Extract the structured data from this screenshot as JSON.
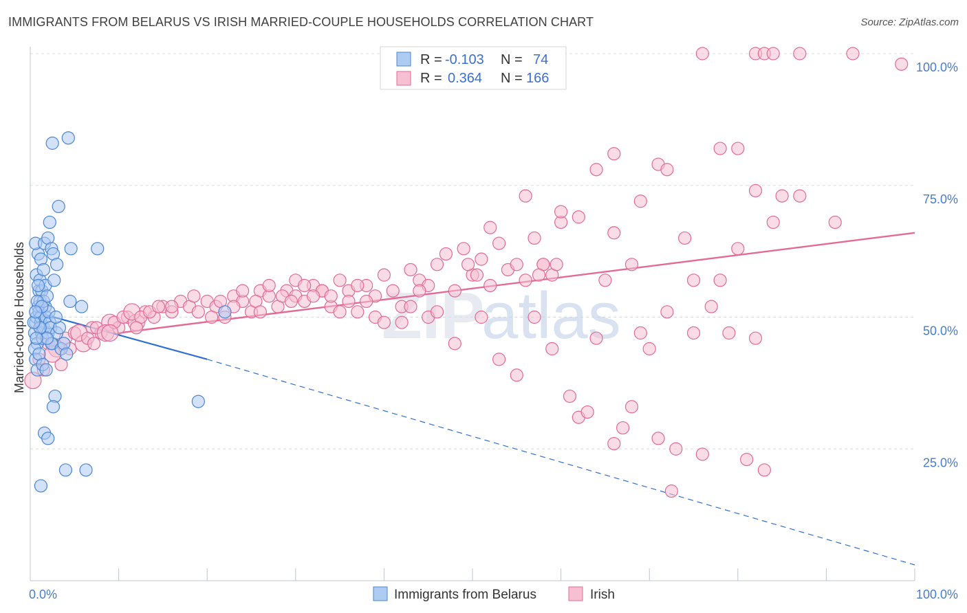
{
  "title": "IMMIGRANTS FROM BELARUS VS IRISH MARRIED-COUPLE HOUSEHOLDS CORRELATION CHART",
  "source": "Source: ZipAtlas.com",
  "watermark": {
    "zip": "ZIP",
    "atlas": "atlas"
  },
  "colors": {
    "blue": "#4a86d6",
    "blue_fill": "#aecbf2",
    "pink": "#e36a95",
    "pink_fill": "#f6bfd2",
    "grid": "#d8dde5",
    "axis_text": "#4a7cc9"
  },
  "legend": {
    "rows": [
      {
        "r_label": "R =",
        "r_value": "-0.103",
        "n_label": "N =",
        "n_value": "74"
      },
      {
        "r_label": "R =",
        "r_value": "0.364",
        "n_label": "N =",
        "n_value": "166"
      }
    ]
  },
  "bottom_legend": [
    "Immigrants from Belarus",
    "Irish"
  ],
  "chart_data": {
    "type": "scatter",
    "ylabel": "Married-couple Households",
    "xlim": [
      0,
      100
    ],
    "ylim": [
      0,
      100
    ],
    "x_tick_labels": [
      "0.0%",
      "100.0%"
    ],
    "y_tick_labels": [
      "25.0%",
      "50.0%",
      "75.0%",
      "100.0%"
    ],
    "y_ticks": [
      25,
      50,
      75,
      100
    ],
    "series": [
      {
        "name": "Immigrants from Belarus",
        "color": "#4a86d6",
        "trend": {
          "x0": 0.5,
          "y0": 51.0,
          "x1": 20.0,
          "y1": 42.0,
          "dash_x1": 100,
          "dash_y1": 3.0
        },
        "points": [
          [
            0.5,
            47
          ],
          [
            0.6,
            49
          ],
          [
            0.7,
            50
          ],
          [
            0.8,
            45
          ],
          [
            0.9,
            52
          ],
          [
            1.0,
            55
          ],
          [
            1.1,
            53
          ],
          [
            1.2,
            49
          ],
          [
            1.3,
            47
          ],
          [
            1.4,
            46
          ],
          [
            0.5,
            44
          ],
          [
            0.6,
            42
          ],
          [
            0.8,
            40
          ],
          [
            1.0,
            51
          ],
          [
            1.2,
            50
          ],
          [
            1.5,
            48
          ],
          [
            1.7,
            52
          ],
          [
            1.8,
            50
          ],
          [
            2.0,
            47
          ],
          [
            2.2,
            49
          ],
          [
            0.7,
            58
          ],
          [
            0.9,
            62
          ],
          [
            1.1,
            57
          ],
          [
            1.3,
            55
          ],
          [
            1.5,
            53
          ],
          [
            1.7,
            56
          ],
          [
            1.9,
            54
          ],
          [
            2.1,
            51
          ],
          [
            2.3,
            48
          ],
          [
            2.5,
            45
          ],
          [
            0.6,
            64
          ],
          [
            1.2,
            61
          ],
          [
            1.6,
            64
          ],
          [
            2.0,
            65
          ],
          [
            2.2,
            68
          ],
          [
            2.4,
            63
          ],
          [
            2.6,
            62
          ],
          [
            3.0,
            60
          ],
          [
            4.5,
            53
          ],
          [
            5.8,
            52
          ],
          [
            1.0,
            43
          ],
          [
            1.4,
            41
          ],
          [
            1.8,
            40
          ],
          [
            2.4,
            45
          ],
          [
            3.0,
            47
          ],
          [
            3.5,
            44
          ],
          [
            2.8,
            35
          ],
          [
            2.6,
            33
          ],
          [
            1.6,
            28
          ],
          [
            2.0,
            27
          ],
          [
            1.2,
            18
          ],
          [
            4.0,
            21
          ],
          [
            6.3,
            21
          ],
          [
            3.2,
            71
          ],
          [
            2.5,
            83
          ],
          [
            4.3,
            84
          ],
          [
            7.6,
            63
          ],
          [
            4.6,
            63
          ],
          [
            3.8,
            45
          ],
          [
            4.1,
            43
          ],
          [
            19.0,
            34
          ],
          [
            22.0,
            51
          ],
          [
            0.9,
            56
          ],
          [
            1.5,
            59
          ],
          [
            0.8,
            53
          ],
          [
            1.3,
            52
          ],
          [
            2.7,
            57
          ],
          [
            3.3,
            48
          ],
          [
            1.1,
            48
          ],
          [
            1.9,
            46
          ],
          [
            0.4,
            49
          ],
          [
            0.6,
            51
          ],
          [
            0.7,
            46
          ],
          [
            2.9,
            50
          ]
        ]
      },
      {
        "name": "Irish",
        "color": "#e36a95",
        "trend": {
          "x0": 10.0,
          "y0": 47.0,
          "x1": 100.0,
          "y1": 66.0
        },
        "points": [
          [
            0.3,
            38
          ],
          [
            1.0,
            42
          ],
          [
            2.0,
            45
          ],
          [
            3.0,
            44
          ],
          [
            4.0,
            46
          ],
          [
            5.0,
            47
          ],
          [
            6.0,
            45
          ],
          [
            7.0,
            48
          ],
          [
            8.0,
            47
          ],
          [
            9.0,
            49
          ],
          [
            10.0,
            48
          ],
          [
            11.0,
            50
          ],
          [
            12.0,
            49
          ],
          [
            13.0,
            51
          ],
          [
            14.0,
            50
          ],
          [
            15.0,
            52
          ],
          [
            16.0,
            51
          ],
          [
            17.0,
            53
          ],
          [
            18.0,
            52
          ],
          [
            19.0,
            51
          ],
          [
            20.0,
            53
          ],
          [
            21.0,
            52
          ],
          [
            22.0,
            50
          ],
          [
            23.0,
            54
          ],
          [
            24.0,
            53
          ],
          [
            25.0,
            51
          ],
          [
            26.0,
            55
          ],
          [
            27.0,
            54
          ],
          [
            28.0,
            52
          ],
          [
            29.0,
            55
          ],
          [
            30.0,
            54
          ],
          [
            31.0,
            53
          ],
          [
            32.0,
            56
          ],
          [
            33.0,
            55
          ],
          [
            34.0,
            52
          ],
          [
            35.0,
            57
          ],
          [
            36.0,
            55
          ],
          [
            37.0,
            51
          ],
          [
            38.0,
            56
          ],
          [
            39.0,
            54
          ],
          [
            40.0,
            58
          ],
          [
            41.0,
            55
          ],
          [
            42.0,
            52
          ],
          [
            43.0,
            59
          ],
          [
            44.0,
            57
          ],
          [
            45.0,
            50
          ],
          [
            46.0,
            60
          ],
          [
            47.0,
            62
          ],
          [
            48.0,
            55
          ],
          [
            49.0,
            63
          ],
          [
            50.0,
            58
          ],
          [
            51.0,
            61
          ],
          [
            52.0,
            56
          ],
          [
            53.0,
            64
          ],
          [
            54.0,
            59
          ],
          [
            55.0,
            60
          ],
          [
            56.0,
            57
          ],
          [
            57.0,
            65
          ],
          [
            58.0,
            60
          ],
          [
            59.0,
            58
          ],
          [
            5.5,
            47
          ],
          [
            6.5,
            46
          ],
          [
            7.5,
            48
          ],
          [
            8.5,
            47
          ],
          [
            9.5,
            49
          ],
          [
            10.5,
            50
          ],
          [
            11.5,
            51
          ],
          [
            12.5,
            50
          ],
          [
            13.5,
            51
          ],
          [
            14.5,
            52
          ],
          [
            3.5,
            41
          ],
          [
            4.5,
            44
          ],
          [
            2.5,
            43
          ],
          [
            1.5,
            40
          ],
          [
            7.2,
            45
          ],
          [
            9.0,
            47
          ],
          [
            12.0,
            48
          ],
          [
            16.0,
            52
          ],
          [
            18.5,
            54
          ],
          [
            21.5,
            53
          ],
          [
            24.0,
            55
          ],
          [
            27.0,
            56
          ],
          [
            30.0,
            57
          ],
          [
            33.0,
            55
          ],
          [
            36.0,
            53
          ],
          [
            39.0,
            50
          ],
          [
            42.0,
            49
          ],
          [
            45.0,
            56
          ],
          [
            48.0,
            45
          ],
          [
            51.0,
            50
          ],
          [
            53.0,
            42
          ],
          [
            55.0,
            39
          ],
          [
            57.0,
            50
          ],
          [
            59.0,
            44
          ],
          [
            60.0,
            68
          ],
          [
            61.0,
            35
          ],
          [
            62.0,
            31
          ],
          [
            63.0,
            32
          ],
          [
            64.0,
            46
          ],
          [
            65.0,
            57
          ],
          [
            66.0,
            26
          ],
          [
            67.0,
            29
          ],
          [
            68.0,
            33
          ],
          [
            69.0,
            47
          ],
          [
            70.0,
            44
          ],
          [
            71.0,
            27
          ],
          [
            72.0,
            51
          ],
          [
            73.0,
            25
          ],
          [
            74.0,
            65
          ],
          [
            75.0,
            47
          ],
          [
            76.0,
            24
          ],
          [
            77.0,
            52
          ],
          [
            78.0,
            57
          ],
          [
            79.0,
            47
          ],
          [
            80.0,
            63
          ],
          [
            81.0,
            23
          ],
          [
            82.0,
            46
          ],
          [
            83.0,
            21
          ],
          [
            84.0,
            68
          ],
          [
            85.0,
            73
          ],
          [
            64.0,
            78
          ],
          [
            66.0,
            81
          ],
          [
            69.0,
            72
          ],
          [
            71.0,
            79
          ],
          [
            72.0,
            78
          ],
          [
            76.0,
            100
          ],
          [
            78.0,
            82
          ],
          [
            80.0,
            82
          ],
          [
            82.0,
            100
          ],
          [
            83.0,
            100
          ],
          [
            84.0,
            100
          ],
          [
            87.0,
            100
          ],
          [
            93.0,
            100
          ],
          [
            98.5,
            98
          ],
          [
            91.0,
            68
          ],
          [
            82.0,
            74
          ],
          [
            87.0,
            73
          ],
          [
            75.0,
            57
          ],
          [
            72.5,
            17
          ],
          [
            58.0,
            60
          ],
          [
            56.0,
            73
          ],
          [
            52.0,
            67
          ],
          [
            60.0,
            70
          ],
          [
            62.0,
            69
          ],
          [
            66.0,
            66
          ],
          [
            68.0,
            60
          ],
          [
            49.5,
            60
          ],
          [
            50.5,
            58
          ],
          [
            57.5,
            58
          ],
          [
            59.5,
            60
          ],
          [
            44.0,
            55
          ],
          [
            46.0,
            51
          ],
          [
            35.0,
            51
          ],
          [
            38.0,
            53
          ],
          [
            40.0,
            49
          ],
          [
            43.0,
            52
          ],
          [
            20.5,
            50
          ],
          [
            25.5,
            53
          ],
          [
            31.0,
            56
          ],
          [
            34.0,
            54
          ],
          [
            23.0,
            52
          ],
          [
            26.0,
            51
          ],
          [
            28.5,
            54
          ],
          [
            29.5,
            53
          ],
          [
            32.0,
            54
          ],
          [
            37.0,
            56
          ]
        ]
      }
    ]
  }
}
